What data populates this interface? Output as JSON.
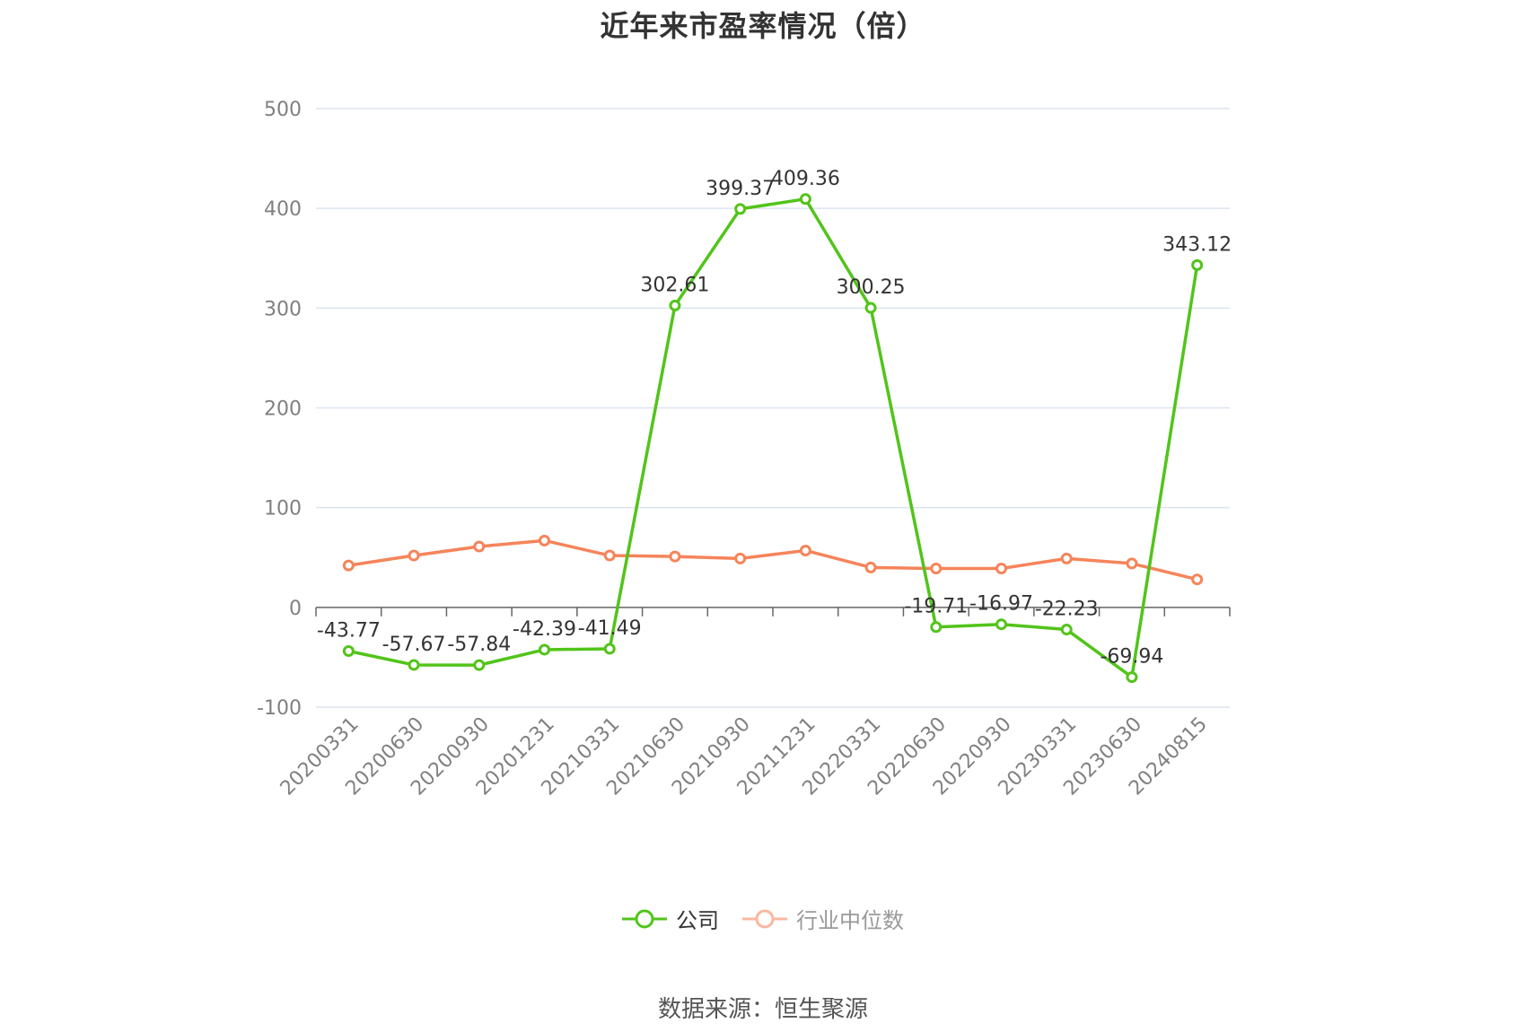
{
  "title": "近年来市盈率情况（倍）",
  "source": "数据来源：恒生聚源",
  "legend": {
    "company": "公司",
    "industry": "行业中位数"
  },
  "colors": {
    "company": "#52c41a",
    "industry": "#f5845a",
    "industry_legend": "#f9b8a0",
    "grid": "#dde3f0",
    "axis": "#666666"
  },
  "chart_data": {
    "type": "line",
    "title": "近年来市盈率情况（倍）",
    "xlabel": "",
    "ylabel": "",
    "ylim": [
      -100,
      500
    ],
    "yticks": [
      -100,
      0,
      100,
      200,
      300,
      400,
      500
    ],
    "grid": true,
    "legend_position": "bottom",
    "categories": [
      "20200331",
      "20200630",
      "20200930",
      "20201231",
      "20210331",
      "20210630",
      "20210930",
      "20211231",
      "20220331",
      "20220630",
      "20220930",
      "20230331",
      "20230630",
      "20240815"
    ],
    "series": [
      {
        "name": "公司",
        "values": [
          -43.77,
          -57.67,
          -57.84,
          -42.39,
          -41.49,
          302.61,
          399.37,
          409.36,
          300.25,
          -19.71,
          -16.97,
          -22.23,
          -69.94,
          343.12
        ],
        "labels": [
          "-43.77",
          "-57.67",
          "-57.84",
          "-42.39",
          "-41.49",
          "302.61",
          "399.37",
          "409.36",
          "300.25",
          "-19.71",
          "-16.97",
          "-22.23",
          "-69.94",
          "343.12"
        ]
      },
      {
        "name": "行业中位数",
        "values": [
          42,
          52,
          61,
          67,
          52,
          51,
          49,
          57,
          40,
          39,
          39,
          49,
          44,
          28
        ]
      }
    ]
  }
}
